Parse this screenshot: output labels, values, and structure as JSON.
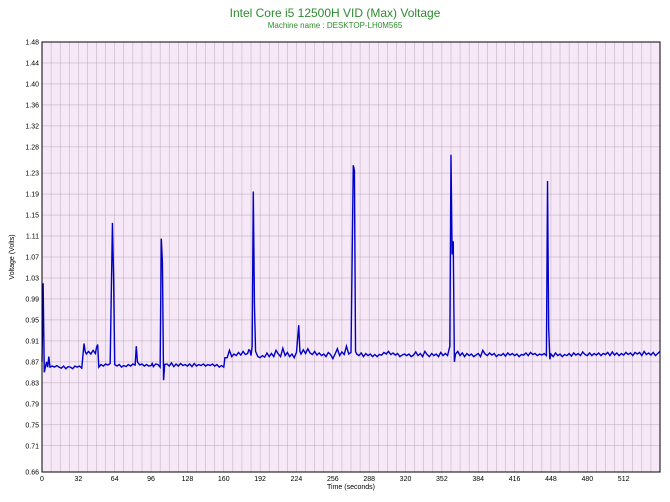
{
  "chart_data": {
    "type": "line",
    "title": "Intel Core i5 12500H VID (Max) Voltage",
    "subtitle": "Machine name : DESKTOP-LH0M565",
    "xlabel": "Time (seconds)",
    "ylabel": "Voltage (Volts)",
    "xlim": [
      0,
      544
    ],
    "ylim": [
      0.66,
      1.48
    ],
    "x_ticks": [
      0,
      32,
      64,
      96,
      128,
      160,
      192,
      224,
      256,
      288,
      320,
      352,
      384,
      416,
      448,
      480,
      512
    ],
    "x_tick_labels": [
      "0",
      "32",
      "64",
      "96",
      "128",
      "160",
      "192",
      "224",
      "256",
      "288",
      "320",
      "352",
      "384",
      "416",
      "448",
      "480",
      "512"
    ],
    "y_ticks": [
      0.66,
      0.71,
      0.75,
      0.79,
      0.83,
      0.87,
      0.91,
      0.95,
      0.99,
      1.03,
      1.07,
      1.11,
      1.15,
      1.19,
      1.23,
      1.28,
      1.32,
      1.36,
      1.4,
      1.44,
      1.48
    ],
    "y_tick_labels": [
      "0.66",
      "0.71",
      "0.75",
      "0.79",
      "0.83",
      "0.87",
      "0.91",
      "0.95",
      "0.99",
      "1.03",
      "1.07",
      "1.11",
      "1.15",
      "1.19",
      "1.23",
      "1.28",
      "1.32",
      "1.36",
      "1.40",
      "1.44",
      "1.48"
    ],
    "grid": true,
    "colors": {
      "background": "#f7e8f7",
      "grid": "#b8a8b8",
      "line": "#0000c8",
      "title": "#2e8b2e"
    },
    "series": [
      {
        "values": [
          [
            0,
            0.87
          ],
          [
            1,
            1.02
          ],
          [
            2,
            0.85
          ],
          [
            3,
            0.86
          ],
          [
            4,
            0.87
          ],
          [
            5,
            0.86
          ],
          [
            6,
            0.88
          ],
          [
            7,
            0.86
          ],
          [
            9,
            0.862
          ],
          [
            11,
            0.86
          ],
          [
            13,
            0.863
          ],
          [
            15,
            0.86
          ],
          [
            17,
            0.858
          ],
          [
            19,
            0.862
          ],
          [
            21,
            0.857
          ],
          [
            23,
            0.861
          ],
          [
            25,
            0.86
          ],
          [
            27,
            0.857
          ],
          [
            29,
            0.862
          ],
          [
            31,
            0.86
          ],
          [
            33,
            0.862
          ],
          [
            35,
            0.858
          ],
          [
            37,
            0.905
          ],
          [
            38,
            0.89
          ],
          [
            39,
            0.885
          ],
          [
            41,
            0.89
          ],
          [
            43,
            0.885
          ],
          [
            45,
            0.892
          ],
          [
            47,
            0.886
          ],
          [
            48,
            0.898
          ],
          [
            49,
            0.903
          ],
          [
            50,
            0.86
          ],
          [
            52,
            0.865
          ],
          [
            54,
            0.862
          ],
          [
            56,
            0.866
          ],
          [
            58,
            0.864
          ],
          [
            60,
            0.867
          ],
          [
            62,
            1.135
          ],
          [
            63,
            1.035
          ],
          [
            64,
            0.865
          ],
          [
            66,
            0.862
          ],
          [
            68,
            0.865
          ],
          [
            70,
            0.86
          ],
          [
            72,
            0.863
          ],
          [
            74,
            0.861
          ],
          [
            76,
            0.865
          ],
          [
            78,
            0.862
          ],
          [
            80,
            0.866
          ],
          [
            82,
            0.864
          ],
          [
            83,
            0.9
          ],
          [
            84,
            0.87
          ],
          [
            86,
            0.864
          ],
          [
            88,
            0.866
          ],
          [
            90,
            0.862
          ],
          [
            92,
            0.865
          ],
          [
            94,
            0.862
          ],
          [
            96,
            0.863
          ],
          [
            97,
            0.867
          ],
          [
            98,
            0.861
          ],
          [
            100,
            0.866
          ],
          [
            102,
            0.865
          ],
          [
            104,
            0.86
          ],
          [
            105,
            1.105
          ],
          [
            106,
            1.06
          ],
          [
            107,
            0.835
          ],
          [
            108,
            0.865
          ],
          [
            110,
            0.866
          ],
          [
            112,
            0.862
          ],
          [
            114,
            0.868
          ],
          [
            116,
            0.861
          ],
          [
            118,
            0.866
          ],
          [
            120,
            0.862
          ],
          [
            122,
            0.867
          ],
          [
            124,
            0.863
          ],
          [
            126,
            0.865
          ],
          [
            128,
            0.862
          ],
          [
            130,
            0.866
          ],
          [
            132,
            0.861
          ],
          [
            134,
            0.867
          ],
          [
            136,
            0.862
          ],
          [
            138,
            0.865
          ],
          [
            140,
            0.863
          ],
          [
            142,
            0.866
          ],
          [
            144,
            0.862
          ],
          [
            146,
            0.865
          ],
          [
            148,
            0.863
          ],
          [
            150,
            0.866
          ],
          [
            152,
            0.862
          ],
          [
            154,
            0.865
          ],
          [
            156,
            0.86
          ],
          [
            158,
            0.863
          ],
          [
            160,
            0.86
          ],
          [
            161,
            0.878
          ],
          [
            163,
            0.878
          ],
          [
            165,
            0.892
          ],
          [
            167,
            0.88
          ],
          [
            169,
            0.885
          ],
          [
            171,
            0.882
          ],
          [
            173,
            0.888
          ],
          [
            175,
            0.883
          ],
          [
            177,
            0.89
          ],
          [
            179,
            0.884
          ],
          [
            181,
            0.886
          ],
          [
            182,
            0.893
          ],
          [
            183,
            0.892
          ],
          [
            184,
            0.882
          ],
          [
            185,
            0.9
          ],
          [
            186,
            1.195
          ],
          [
            187,
            0.98
          ],
          [
            188,
            0.89
          ],
          [
            189,
            0.885
          ],
          [
            190,
            0.88
          ],
          [
            192,
            0.878
          ],
          [
            194,
            0.882
          ],
          [
            196,
            0.879
          ],
          [
            198,
            0.887
          ],
          [
            200,
            0.88
          ],
          [
            202,
            0.886
          ],
          [
            204,
            0.88
          ],
          [
            206,
            0.892
          ],
          [
            208,
            0.885
          ],
          [
            210,
            0.88
          ],
          [
            212,
            0.896
          ],
          [
            214,
            0.882
          ],
          [
            216,
            0.888
          ],
          [
            218,
            0.88
          ],
          [
            220,
            0.885
          ],
          [
            222,
            0.878
          ],
          [
            224,
            0.888
          ],
          [
            226,
            0.94
          ],
          [
            227,
            0.89
          ],
          [
            228,
            0.885
          ],
          [
            230,
            0.893
          ],
          [
            232,
            0.886
          ],
          [
            234,
            0.895
          ],
          [
            236,
            0.887
          ],
          [
            238,
            0.884
          ],
          [
            240,
            0.89
          ],
          [
            242,
            0.883
          ],
          [
            244,
            0.887
          ],
          [
            246,
            0.882
          ],
          [
            248,
            0.885
          ],
          [
            250,
            0.88
          ],
          [
            252,
            0.888
          ],
          [
            254,
            0.884
          ],
          [
            256,
            0.876
          ],
          [
            258,
            0.885
          ],
          [
            260,
            0.895
          ],
          [
            262,
            0.882
          ],
          [
            264,
            0.889
          ],
          [
            266,
            0.884
          ],
          [
            268,
            0.9
          ],
          [
            270,
            0.885
          ],
          [
            272,
            0.888
          ],
          [
            274,
            1.245
          ],
          [
            275,
            1.235
          ],
          [
            276,
            0.89
          ],
          [
            277,
            0.885
          ],
          [
            279,
            0.882
          ],
          [
            281,
            0.887
          ],
          [
            283,
            0.88
          ],
          [
            285,
            0.886
          ],
          [
            287,
            0.882
          ],
          [
            289,
            0.885
          ],
          [
            291,
            0.88
          ],
          [
            293,
            0.884
          ],
          [
            295,
            0.88
          ],
          [
            297,
            0.884
          ],
          [
            299,
            0.883
          ],
          [
            301,
            0.888
          ],
          [
            303,
            0.885
          ],
          [
            305,
            0.89
          ],
          [
            307,
            0.884
          ],
          [
            309,
            0.887
          ],
          [
            311,
            0.883
          ],
          [
            313,
            0.886
          ],
          [
            315,
            0.88
          ],
          [
            317,
            0.883
          ],
          [
            319,
            0.885
          ],
          [
            321,
            0.882
          ],
          [
            323,
            0.885
          ],
          [
            325,
            0.88
          ],
          [
            327,
            0.883
          ],
          [
            329,
            0.889
          ],
          [
            331,
            0.882
          ],
          [
            333,
            0.886
          ],
          [
            335,
            0.88
          ],
          [
            337,
            0.89
          ],
          [
            339,
            0.884
          ],
          [
            341,
            0.88
          ],
          [
            343,
            0.886
          ],
          [
            345,
            0.882
          ],
          [
            347,
            0.885
          ],
          [
            349,
            0.88
          ],
          [
            351,
            0.888
          ],
          [
            353,
            0.882
          ],
          [
            355,
            0.886
          ],
          [
            357,
            0.882
          ],
          [
            359,
            0.9
          ],
          [
            360,
            1.265
          ],
          [
            361,
            1.075
          ],
          [
            362,
            1.1
          ],
          [
            363,
            0.87
          ],
          [
            364,
            0.885
          ],
          [
            366,
            0.89
          ],
          [
            368,
            0.882
          ],
          [
            370,
            0.887
          ],
          [
            372,
            0.88
          ],
          [
            374,
            0.886
          ],
          [
            376,
            0.882
          ],
          [
            378,
            0.885
          ],
          [
            380,
            0.88
          ],
          [
            382,
            0.883
          ],
          [
            384,
            0.886
          ],
          [
            386,
            0.88
          ],
          [
            388,
            0.892
          ],
          [
            390,
            0.885
          ],
          [
            392,
            0.882
          ],
          [
            394,
            0.887
          ],
          [
            396,
            0.883
          ],
          [
            398,
            0.886
          ],
          [
            400,
            0.88
          ],
          [
            402,
            0.884
          ],
          [
            404,
            0.882
          ],
          [
            406,
            0.886
          ],
          [
            408,
            0.881
          ],
          [
            410,
            0.887
          ],
          [
            412,
            0.883
          ],
          [
            414,
            0.886
          ],
          [
            416,
            0.882
          ],
          [
            418,
            0.885
          ],
          [
            420,
            0.88
          ],
          [
            422,
            0.884
          ],
          [
            424,
            0.883
          ],
          [
            426,
            0.887
          ],
          [
            428,
            0.882
          ],
          [
            430,
            0.888
          ],
          [
            432,
            0.884
          ],
          [
            434,
            0.886
          ],
          [
            436,
            0.882
          ],
          [
            438,
            0.885
          ],
          [
            440,
            0.883
          ],
          [
            442,
            0.886
          ],
          [
            444,
            0.882
          ],
          [
            445,
            1.215
          ],
          [
            446,
            0.935
          ],
          [
            447,
            0.875
          ],
          [
            448,
            0.885
          ],
          [
            450,
            0.88
          ],
          [
            452,
            0.887
          ],
          [
            454,
            0.882
          ],
          [
            456,
            0.885
          ],
          [
            458,
            0.88
          ],
          [
            460,
            0.884
          ],
          [
            462,
            0.882
          ],
          [
            464,
            0.886
          ],
          [
            466,
            0.881
          ],
          [
            468,
            0.887
          ],
          [
            470,
            0.883
          ],
          [
            472,
            0.886
          ],
          [
            474,
            0.882
          ],
          [
            476,
            0.889
          ],
          [
            478,
            0.884
          ],
          [
            480,
            0.882
          ],
          [
            482,
            0.887
          ],
          [
            484,
            0.882
          ],
          [
            486,
            0.886
          ],
          [
            488,
            0.883
          ],
          [
            490,
            0.887
          ],
          [
            492,
            0.882
          ],
          [
            494,
            0.886
          ],
          [
            496,
            0.884
          ],
          [
            498,
            0.888
          ],
          [
            500,
            0.882
          ],
          [
            502,
            0.889
          ],
          [
            504,
            0.883
          ],
          [
            506,
            0.887
          ],
          [
            508,
            0.882
          ],
          [
            510,
            0.886
          ],
          [
            512,
            0.883
          ],
          [
            514,
            0.888
          ],
          [
            516,
            0.884
          ],
          [
            518,
            0.887
          ],
          [
            520,
            0.882
          ],
          [
            522,
            0.888
          ],
          [
            524,
            0.885
          ],
          [
            526,
            0.888
          ],
          [
            528,
            0.882
          ],
          [
            530,
            0.89
          ],
          [
            532,
            0.884
          ],
          [
            534,
            0.887
          ],
          [
            536,
            0.883
          ],
          [
            538,
            0.888
          ],
          [
            540,
            0.882
          ],
          [
            542,
            0.886
          ],
          [
            544,
            0.89
          ]
        ]
      }
    ]
  }
}
